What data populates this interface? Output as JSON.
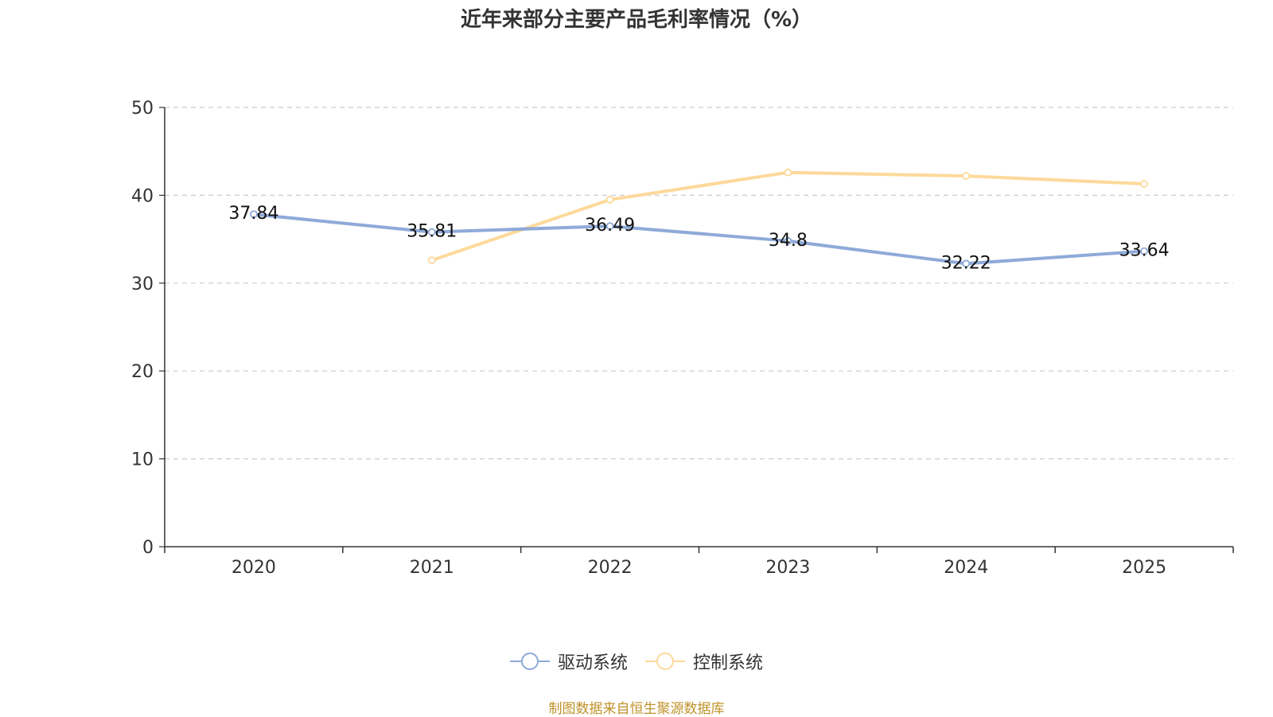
{
  "chart_data": {
    "type": "line",
    "title": "近年来部分主要产品毛利率情况（%）",
    "categories": [
      "2020",
      "2021",
      "2022",
      "2023",
      "2024",
      "2025"
    ],
    "xlabel": "",
    "ylabel": "",
    "ylim": [
      0,
      50
    ],
    "yticks": [
      0,
      10,
      20,
      30,
      40,
      50
    ],
    "grid": true,
    "legend_position": "bottom",
    "series": [
      {
        "name": "驱动系统",
        "color": "#8eaad9",
        "values": [
          37.84,
          35.81,
          36.49,
          34.8,
          32.22,
          33.64
        ],
        "labels": [
          "37.84",
          "35.81",
          "36.49",
          "34.8",
          "32.22",
          "33.64"
        ]
      },
      {
        "name": "控制系统",
        "color": "#fdd99a",
        "values": [
          null,
          32.6,
          39.5,
          42.6,
          42.2,
          41.3
        ],
        "labels": null
      }
    ]
  },
  "source": "制图数据来自恒生聚源数据库"
}
